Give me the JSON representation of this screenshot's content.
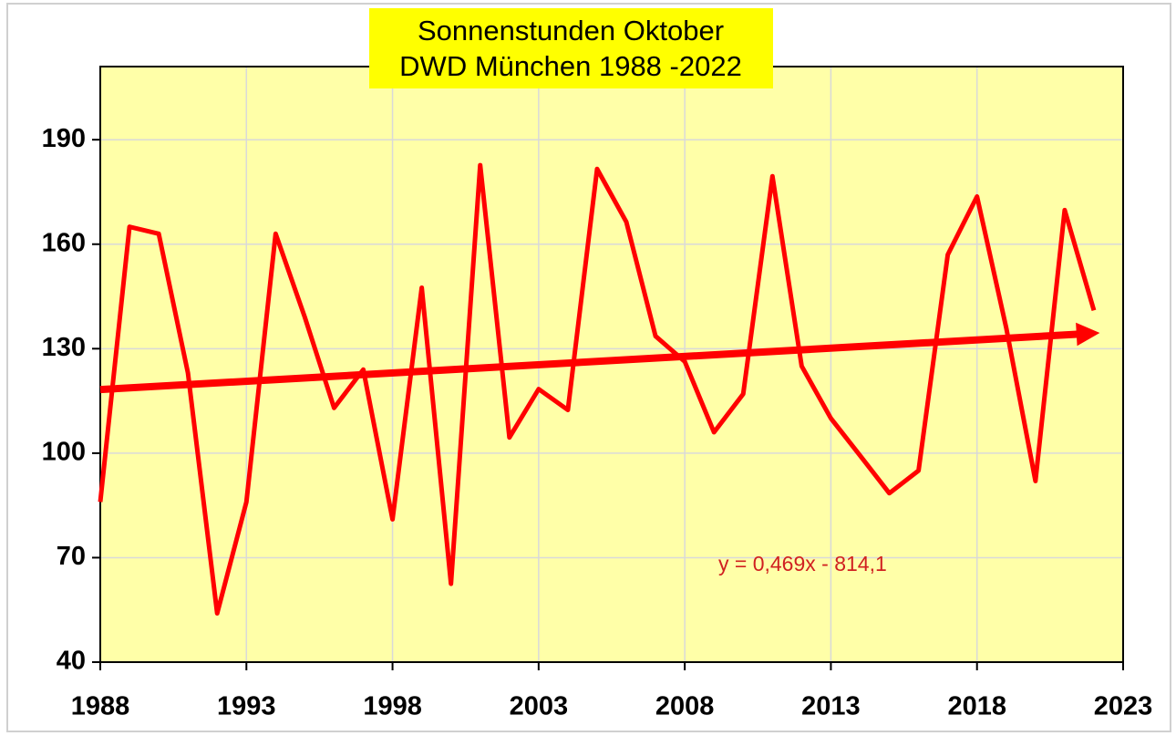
{
  "chart_data": {
    "type": "line",
    "title": [
      "Sonnenstunden Oktober",
      "DWD München 1988 -2022"
    ],
    "x": [
      1988,
      1989,
      1990,
      1991,
      1992,
      1993,
      1994,
      1995,
      1996,
      1997,
      1998,
      1999,
      2000,
      2001,
      2002,
      2003,
      2004,
      2005,
      2006,
      2007,
      2008,
      2009,
      2010,
      2011,
      2012,
      2013,
      2014,
      2015,
      2016,
      2017,
      2018,
      2019,
      2020,
      2021,
      2022
    ],
    "series": [
      {
        "name": "Sonnenstunden",
        "color": "#ff0000",
        "values": [
          86,
          165,
          163,
          123,
          54,
          86,
          163,
          139,
          113,
          124,
          81,
          147.5,
          62.5,
          182.7,
          104.5,
          118.4,
          112.4,
          181.6,
          166.4,
          133.6,
          126.3,
          106,
          117,
          179.5,
          125,
          110,
          99.3,
          88.5,
          95,
          157,
          173.7,
          136,
          92,
          169.8,
          141
        ]
      }
    ],
    "trendline": {
      "label": "y = 0,469x - 814,1",
      "slope": 0.469,
      "intercept": -814.1,
      "color": "#ff0000"
    },
    "xlim": [
      1988,
      2023
    ],
    "xticks": [
      1988,
      1993,
      1998,
      2003,
      2008,
      2013,
      2018,
      2023
    ],
    "ylim": [
      40,
      211
    ],
    "yticks": [
      40,
      70,
      100,
      130,
      160,
      190
    ],
    "grid": true,
    "plot_background": "#ffffa8"
  }
}
